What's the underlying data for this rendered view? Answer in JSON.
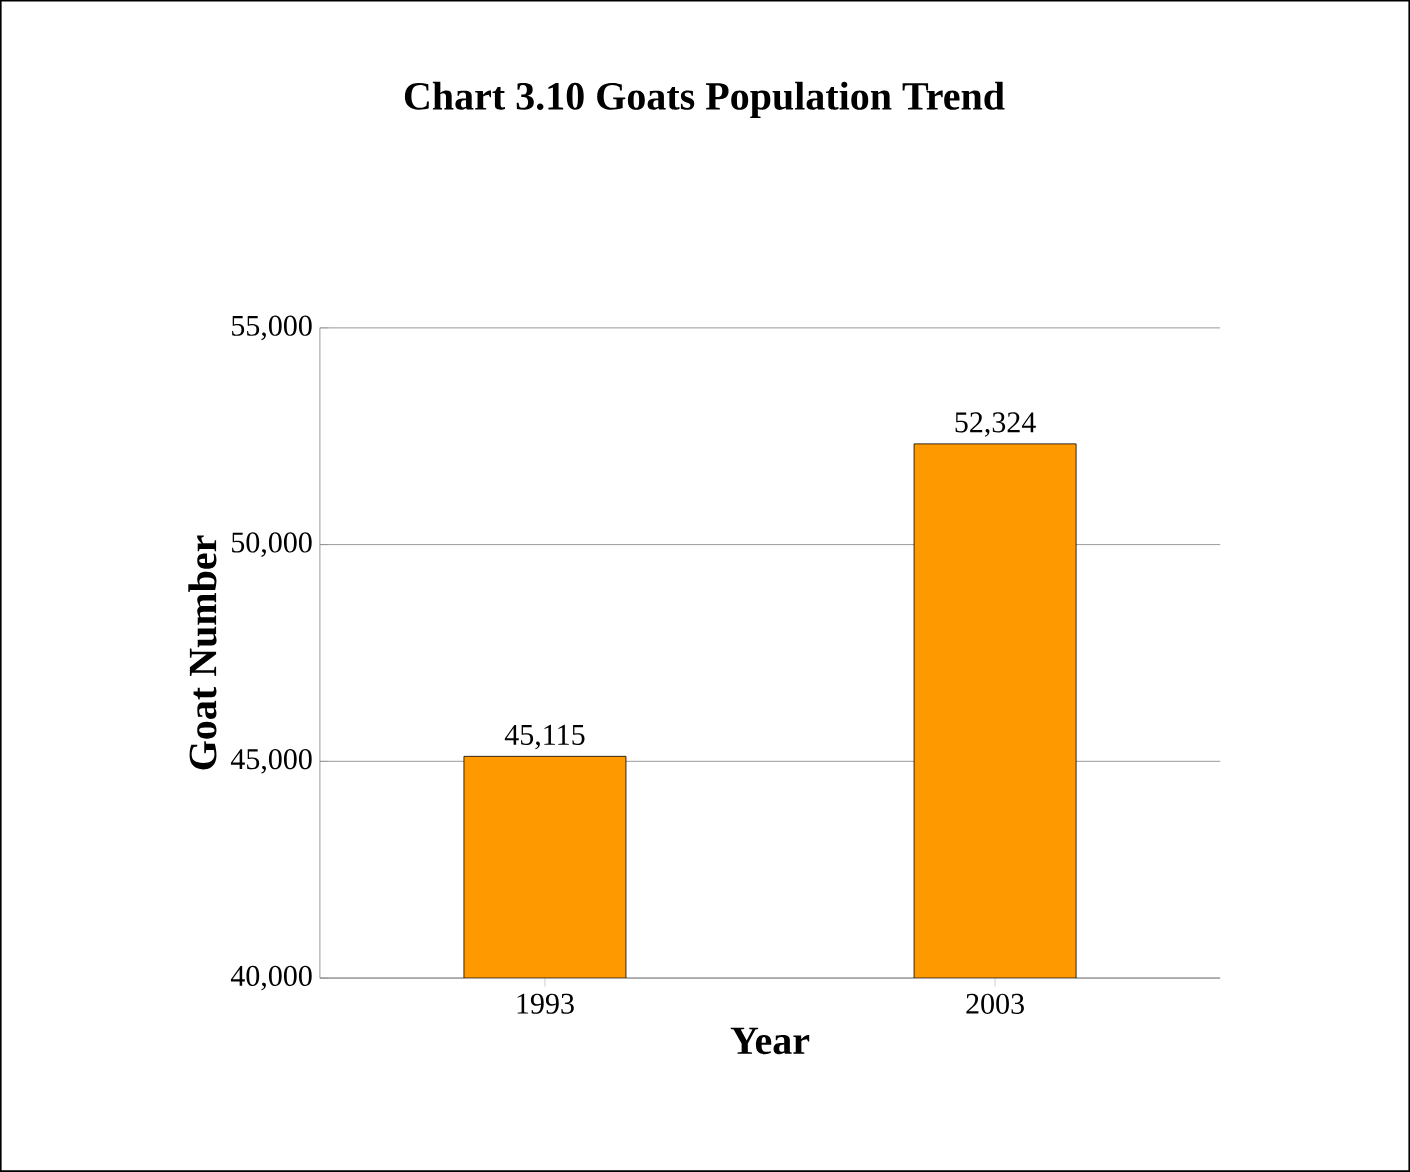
{
  "chart_data": {
    "type": "bar",
    "title": "Chart 3.10 Goats Population Trend",
    "xlabel": "Year",
    "ylabel": "Goat Number",
    "categories": [
      "1993",
      "2003"
    ],
    "values": [
      45115,
      52324
    ],
    "value_labels": [
      "45,115",
      "52,324"
    ],
    "color": "#ff9900",
    "ylim": [
      40000,
      55000
    ],
    "yticks": [
      {
        "value": 40000,
        "label": "40,000"
      },
      {
        "value": 45000,
        "label": "45,000"
      },
      {
        "value": 50000,
        "label": "50,000"
      },
      {
        "value": 55000,
        "label": "55,000"
      }
    ],
    "grid": "y"
  }
}
